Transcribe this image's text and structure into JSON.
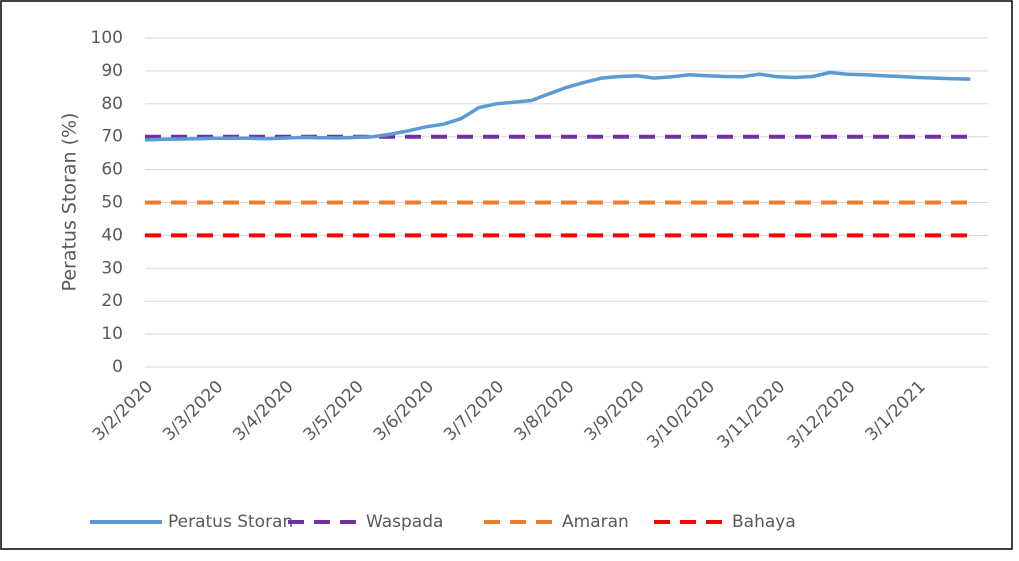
{
  "chart_data": {
    "type": "line",
    "y_label": "Peratus Storan (%)",
    "categories": [
      "3/2/2020",
      null,
      null,
      null,
      "3/3/2020",
      null,
      null,
      null,
      "3/4/2020",
      null,
      null,
      null,
      "3/5/2020",
      null,
      null,
      null,
      "3/6/2020",
      null,
      null,
      null,
      "3/7/2020",
      null,
      null,
      null,
      "3/8/2020",
      null,
      null,
      null,
      "3/9/2020",
      null,
      null,
      null,
      "3/10/2020",
      null,
      null,
      null,
      "3/11/2020",
      null,
      null,
      null,
      "3/12/2020",
      null,
      null,
      null,
      "3/1/2021",
      null,
      null,
      null
    ],
    "series": [
      {
        "name": "Peratus Storan",
        "color": "#5b9bd5",
        "dashed": false,
        "values": [
          69,
          69.2,
          69.3,
          69.4,
          69.5,
          69.5,
          69.5,
          69.4,
          69.6,
          69.8,
          69.7,
          69.6,
          69.8,
          70,
          70.8,
          71.8,
          73,
          73.8,
          75.5,
          78.8,
          80,
          80.5,
          81,
          83,
          85,
          86.5,
          87.8,
          88.3,
          88.5,
          87.8,
          88.2,
          88.8,
          88.5,
          88.3,
          88.2,
          89,
          88.2,
          88,
          88.3,
          89.5,
          89,
          88.8,
          88.5,
          88.3,
          88,
          87.8,
          87.6,
          87.5
        ]
      },
      {
        "name": "Waspada",
        "color": "#7030a0",
        "dashed": true,
        "values": [
          70,
          70,
          70,
          70,
          70,
          70,
          70,
          70,
          70,
          70,
          70,
          70,
          70,
          70,
          70,
          70,
          70,
          70,
          70,
          70,
          70,
          70,
          70,
          70,
          70,
          70,
          70,
          70,
          70,
          70,
          70,
          70,
          70,
          70,
          70,
          70,
          70,
          70,
          70,
          70,
          70,
          70,
          70,
          70,
          70,
          70,
          70,
          70
        ]
      },
      {
        "name": "Amaran",
        "color": "#ed7d31",
        "dashed": true,
        "values": [
          50,
          50,
          50,
          50,
          50,
          50,
          50,
          50,
          50,
          50,
          50,
          50,
          50,
          50,
          50,
          50,
          50,
          50,
          50,
          50,
          50,
          50,
          50,
          50,
          50,
          50,
          50,
          50,
          50,
          50,
          50,
          50,
          50,
          50,
          50,
          50,
          50,
          50,
          50,
          50,
          50,
          50,
          50,
          50,
          50,
          50,
          50,
          50
        ]
      },
      {
        "name": "Bahaya",
        "color": "#ff0000",
        "dashed": true,
        "values": [
          40,
          40,
          40,
          40,
          40,
          40,
          40,
          40,
          40,
          40,
          40,
          40,
          40,
          40,
          40,
          40,
          40,
          40,
          40,
          40,
          40,
          40,
          40,
          40,
          40,
          40,
          40,
          40,
          40,
          40,
          40,
          40,
          40,
          40,
          40,
          40,
          40,
          40,
          40,
          40,
          40,
          40,
          40,
          40,
          40,
          40,
          40,
          40
        ]
      }
    ],
    "ylim": [
      0,
      100
    ],
    "yticks": [
      0,
      10,
      20,
      30,
      40,
      50,
      60,
      70,
      80,
      90,
      100
    ],
    "grid": true,
    "legend": "bottom"
  }
}
